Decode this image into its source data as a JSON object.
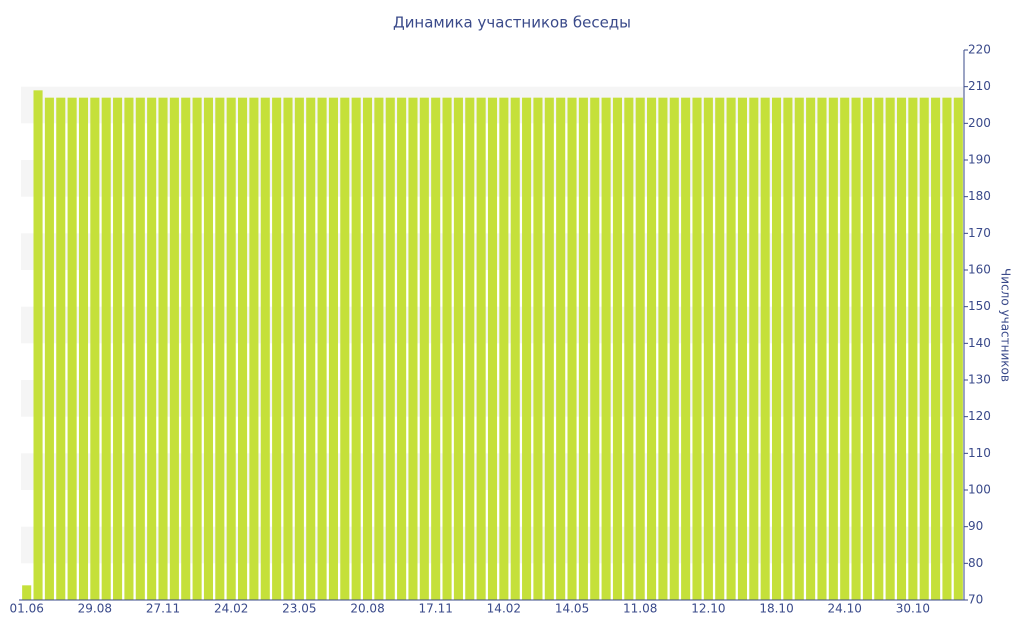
{
  "chart_data": {
    "type": "bar",
    "title": "Динамика участников беседы",
    "y_axis_label": "Число участников",
    "categories": [
      "01.06",
      null,
      null,
      null,
      null,
      null,
      "29.08",
      null,
      null,
      null,
      null,
      null,
      "27.11",
      null,
      null,
      null,
      null,
      null,
      "24.02",
      null,
      null,
      null,
      null,
      null,
      "23.05",
      null,
      null,
      null,
      null,
      null,
      "20.08",
      null,
      null,
      null,
      null,
      null,
      "17.11",
      null,
      null,
      null,
      null,
      null,
      "14.02",
      null,
      null,
      null,
      null,
      null,
      "14.05",
      null,
      null,
      null,
      null,
      null,
      "11.08",
      null,
      null,
      null,
      null,
      null,
      "12.10",
      null,
      null,
      null,
      null,
      null,
      "18.10",
      null,
      null,
      null,
      null,
      null,
      "24.10",
      null,
      null,
      null,
      null,
      null,
      "30.10",
      null,
      null,
      null,
      null
    ],
    "values": [
      74,
      209,
      207,
      207,
      207,
      207,
      207,
      207,
      207,
      207,
      207,
      207,
      207,
      207,
      207,
      207,
      207,
      207,
      207,
      207,
      207,
      207,
      207,
      207,
      207,
      207,
      207,
      207,
      207,
      207,
      207,
      207,
      207,
      207,
      207,
      207,
      207,
      207,
      207,
      207,
      207,
      207,
      207,
      207,
      207,
      207,
      207,
      207,
      207,
      207,
      207,
      207,
      207,
      207,
      207,
      207,
      207,
      207,
      207,
      207,
      207,
      207,
      207,
      207,
      207,
      207,
      207,
      207,
      207,
      207,
      207,
      207,
      207,
      207,
      207,
      207,
      207,
      207,
      207,
      207,
      207,
      207,
      207
    ],
    "color": "#c5e03a",
    "ylim": [
      70,
      220
    ],
    "yticks": [
      70,
      80,
      90,
      100,
      110,
      120,
      130,
      140,
      150,
      160,
      170,
      180,
      190,
      200,
      210,
      220
    ],
    "y_axis_side": "right",
    "banded_background": true
  }
}
